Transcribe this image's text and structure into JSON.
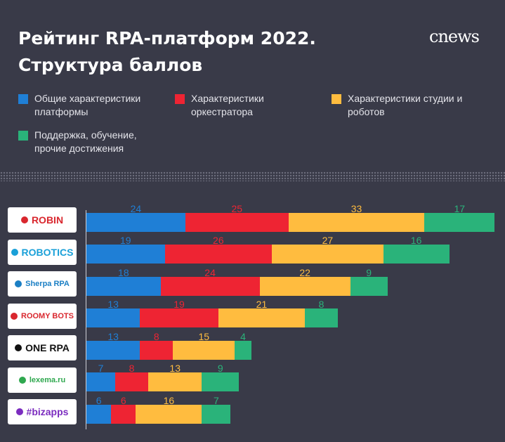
{
  "header": {
    "title_line1": "Рейтинг RPA-платформ 2022.",
    "title_line2": "Структура баллов",
    "brand": "cnews"
  },
  "colors": {
    "background": "#393a48",
    "blue": "#1f7fd6",
    "red": "#ee2433",
    "yellow": "#ffbc3f",
    "green": "#2ab37a"
  },
  "legend": [
    {
      "label": "Общие характеристики\nплатформы",
      "color": "#1f7fd6"
    },
    {
      "label": "Характеристики\nоркестратора",
      "color": "#ee2433"
    },
    {
      "label": "Характеристики студии и\nроботов",
      "color": "#ffbc3f"
    },
    {
      "label": "Поддержка, обучение,\nпрочие достижения",
      "color": "#2ab37a"
    }
  ],
  "logos": [
    {
      "text": "ROBIN",
      "icon": "robin-robot-icon",
      "color": "#d9272e"
    },
    {
      "text": "ROBOTICS",
      "icon": "bix-logo-icon",
      "color": "#1aa0d8"
    },
    {
      "text": "Sherpa RPA",
      "icon": "sherpa-gear-icon",
      "color": "#1b7fc4"
    },
    {
      "text": "ROOMY BOTS",
      "icon": "roomy-logo-icon",
      "color": "#d9272e"
    },
    {
      "text": "ONE RPA",
      "icon": "onerpa-logo-icon",
      "color": "#111111"
    },
    {
      "text": "lexema.ru",
      "icon": "lexema-leaf-icon",
      "color": "#2fa84f"
    },
    {
      "text": "#bizapps",
      "icon": "bizapps-logo-icon",
      "color": "#7b2cbf"
    }
  ],
  "chart_data": {
    "type": "bar",
    "orientation": "horizontal",
    "stacked": true,
    "categories": [
      "ROBIN",
      "ROBOTICS",
      "Sherpa RPA",
      "ROOMY BOTS",
      "ONE RPA",
      "lexema.ru",
      "#bizapps"
    ],
    "series": [
      {
        "name": "Общие характеристики платформы",
        "color": "#1f7fd6",
        "values": [
          24,
          19,
          18,
          13,
          13,
          7,
          6
        ]
      },
      {
        "name": "Характеристики оркестратора",
        "color": "#ee2433",
        "values": [
          25,
          26,
          24,
          19,
          8,
          8,
          6
        ]
      },
      {
        "name": "Характеристики студии и роботов",
        "color": "#ffbc3f",
        "values": [
          33,
          27,
          22,
          21,
          15,
          13,
          16
        ]
      },
      {
        "name": "Поддержка, обучение, прочие достижения",
        "color": "#2ab37a",
        "values": [
          17,
          16,
          9,
          8,
          4,
          9,
          7
        ]
      }
    ],
    "xlim": [
      0,
      99
    ],
    "grid": false,
    "legend_position": "top"
  }
}
